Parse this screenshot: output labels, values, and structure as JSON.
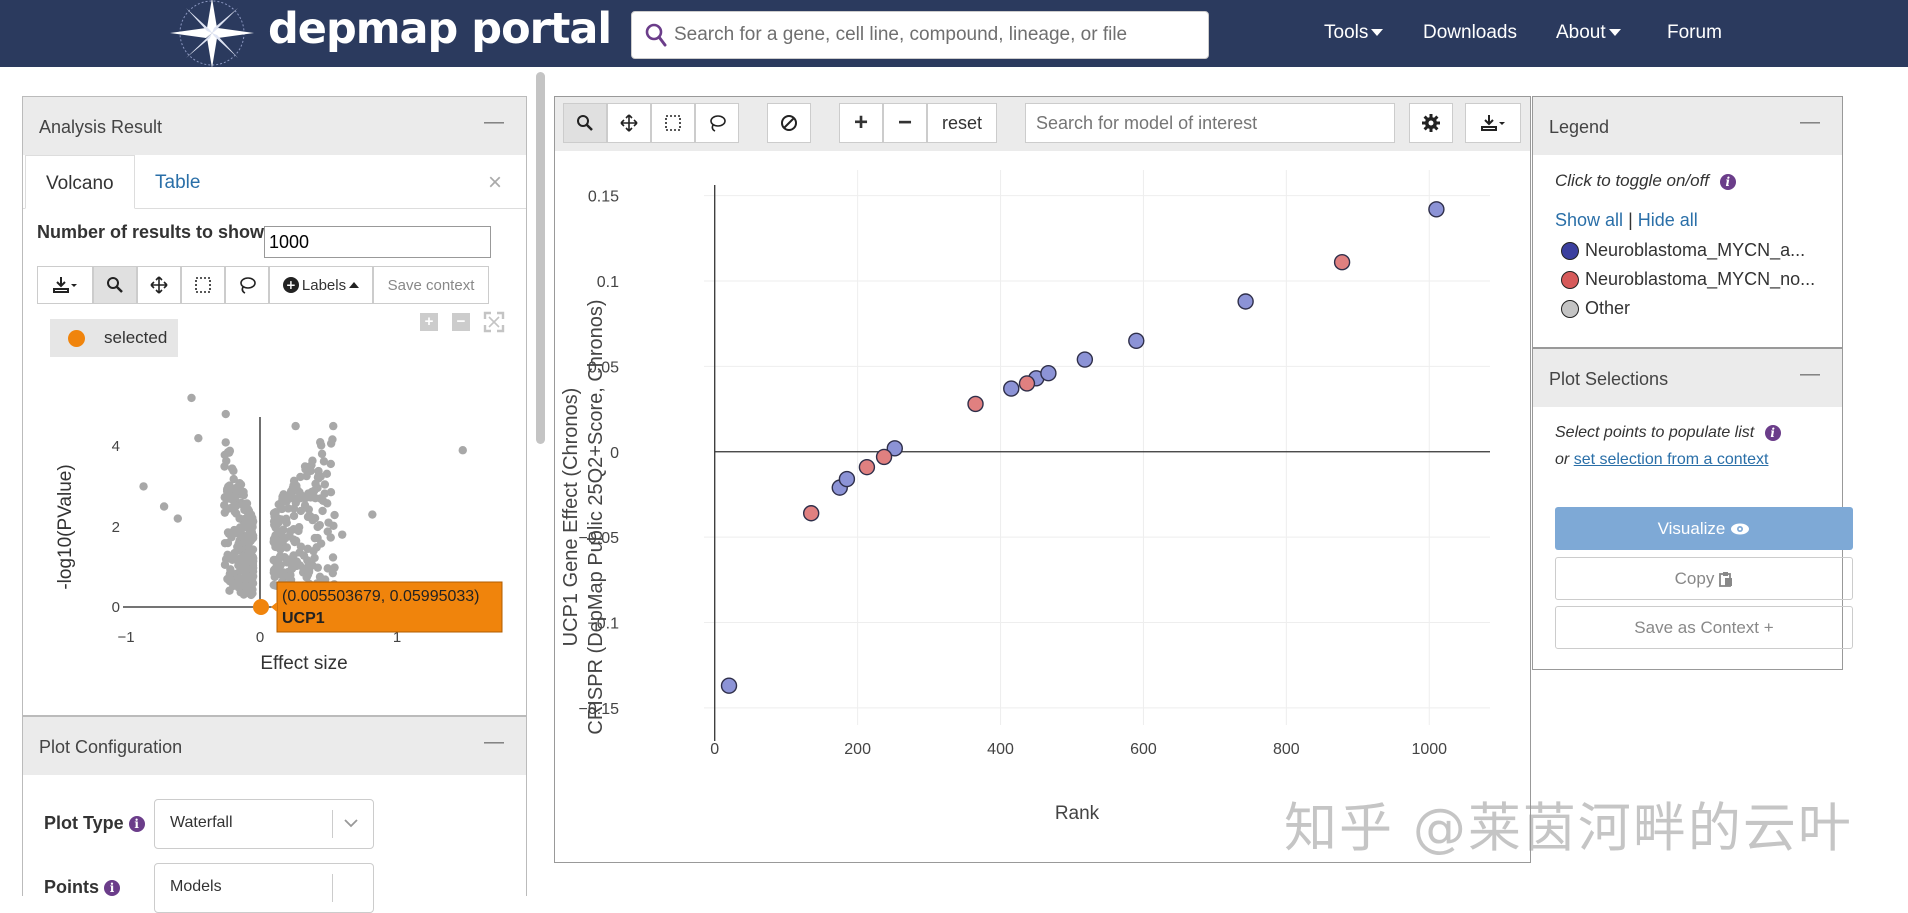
{
  "header": {
    "logo": "depmap portal",
    "search_placeholder": "Search for a gene, cell line, compound, lineage, or file",
    "nav": [
      "Tools",
      "Downloads",
      "About",
      "Forum"
    ]
  },
  "analysis": {
    "title": "Analysis Result",
    "minimize": "—",
    "tabs": [
      "Volcano",
      "Table"
    ],
    "close": "×",
    "num_results_label": "Number of results to show:",
    "num_results_value": "1000",
    "labels_btn": "Labels",
    "save_context": "Save context",
    "selected_label": "selected",
    "volcano": {
      "xlabel": "Effect size",
      "ylabel": "-log10(PValue)",
      "xticks": [
        "−1",
        "0",
        "1"
      ],
      "yticks": [
        "0",
        "2",
        "4"
      ],
      "tooltip_coords": "(0.005503679, 0.05995033)",
      "tooltip_gene": "UCP1"
    }
  },
  "plot_config": {
    "title": "Plot Configuration",
    "minimize": "—",
    "plot_type_label": "Plot Type",
    "plot_type_value": "Waterfall",
    "points_label": "Points",
    "points_value": "Models"
  },
  "toolbar": {
    "reset": "reset",
    "model_search_placeholder": "Search for model of interest"
  },
  "chart_data": {
    "type": "scatter",
    "xlabel": "Rank",
    "ylabel_line1": "UCP1 Gene Effect (Chronos)",
    "ylabel_line2": "CRISPR (DepMap Public 25Q2+Score, Chronos)",
    "xlim": [
      -15,
      1085
    ],
    "ylim": [
      -0.16,
      0.165
    ],
    "xticks": [
      0,
      200,
      400,
      600,
      800,
      1000
    ],
    "yticks": [
      0.15,
      0.1,
      0.05,
      0,
      -0.05,
      -0.1,
      -0.15
    ],
    "ytick_labels": [
      "0.15",
      "0.1",
      "0.05",
      "0",
      "−0.05",
      "−0.1",
      "−0.15"
    ],
    "grid": true,
    "series": [
      {
        "name": "Neuroblastoma_MYCN_a...",
        "color": "#8c93d6",
        "points": [
          [
            20,
            -0.137
          ],
          [
            175,
            -0.021
          ],
          [
            185,
            -0.016
          ],
          [
            252,
            0.002
          ],
          [
            415,
            0.037
          ],
          [
            450,
            0.043
          ],
          [
            467,
            0.046
          ],
          [
            518,
            0.054
          ],
          [
            590,
            0.065
          ],
          [
            743,
            0.088
          ],
          [
            1010,
            0.142
          ]
        ]
      },
      {
        "name": "Neuroblastoma_MYCN_no...",
        "color": "#e08080",
        "points": [
          [
            135,
            -0.036
          ],
          [
            213,
            -0.009
          ],
          [
            237,
            -0.003
          ],
          [
            365,
            0.028
          ],
          [
            437,
            0.04
          ],
          [
            878,
            0.111
          ]
        ]
      }
    ]
  },
  "legend": {
    "title": "Legend",
    "minimize": "—",
    "hint": "Click to toggle on/off",
    "show_all": "Show all",
    "sep": "|",
    "hide_all": "Hide all",
    "items": [
      {
        "label": "Neuroblastoma_MYCN_a...",
        "color": "#3b3f9e"
      },
      {
        "label": "Neuroblastoma_MYCN_no...",
        "color": "#d65a5a"
      },
      {
        "label": "Other",
        "color": "#c4c4c4"
      }
    ]
  },
  "selections": {
    "title": "Plot Selections",
    "minimize": "—",
    "hint": "Select points to populate list",
    "or": "or",
    "context_link": "set selection from a context",
    "visualize": "Visualize",
    "copy": "Copy",
    "save_as_context": "Save as Context +"
  },
  "watermark": "知乎 @莱茵河畔的云叶"
}
